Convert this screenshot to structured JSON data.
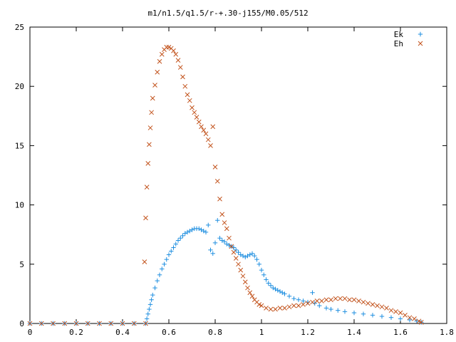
{
  "chart_data": {
    "type": "scatter",
    "title": "m1/n1.5/q1.5/r-+.30-j155/M0.05/512",
    "xlabel": "",
    "ylabel": "",
    "xlim": [
      0,
      1.8
    ],
    "ylim": [
      0,
      25
    ],
    "x_ticks": [
      "0",
      "0.2",
      "0.4",
      "0.6",
      "0.8",
      "1",
      "1.2",
      "1.4",
      "1.6",
      "1.8"
    ],
    "y_ticks": [
      "0",
      "5",
      "10",
      "15",
      "20",
      "25"
    ],
    "grid": false,
    "legend_position": "top-right",
    "series": [
      {
        "name": "Ek",
        "marker": "+",
        "color": "#1f8fe0",
        "points": [
          [
            0.0,
            0
          ],
          [
            0.05,
            0
          ],
          [
            0.1,
            0
          ],
          [
            0.15,
            0
          ],
          [
            0.2,
            0
          ],
          [
            0.25,
            0
          ],
          [
            0.3,
            0
          ],
          [
            0.35,
            0
          ],
          [
            0.4,
            0
          ],
          [
            0.45,
            0
          ],
          [
            0.5,
            0
          ],
          [
            0.505,
            0.4
          ],
          [
            0.51,
            0.8
          ],
          [
            0.515,
            1.2
          ],
          [
            0.52,
            1.6
          ],
          [
            0.525,
            2.0
          ],
          [
            0.53,
            2.4
          ],
          [
            0.54,
            3.0
          ],
          [
            0.55,
            3.6
          ],
          [
            0.56,
            4.1
          ],
          [
            0.57,
            4.6
          ],
          [
            0.58,
            5.0
          ],
          [
            0.59,
            5.4
          ],
          [
            0.6,
            5.8
          ],
          [
            0.61,
            6.1
          ],
          [
            0.62,
            6.4
          ],
          [
            0.63,
            6.7
          ],
          [
            0.64,
            7.0
          ],
          [
            0.65,
            7.2
          ],
          [
            0.66,
            7.4
          ],
          [
            0.67,
            7.6
          ],
          [
            0.68,
            7.7
          ],
          [
            0.69,
            7.8
          ],
          [
            0.7,
            7.9
          ],
          [
            0.71,
            8.0
          ],
          [
            0.72,
            8.0
          ],
          [
            0.73,
            8.0
          ],
          [
            0.74,
            7.9
          ],
          [
            0.75,
            7.8
          ],
          [
            0.76,
            7.7
          ],
          [
            0.77,
            8.3
          ],
          [
            0.78,
            6.2
          ],
          [
            0.79,
            5.9
          ],
          [
            0.8,
            6.8
          ],
          [
            0.81,
            8.7
          ],
          [
            0.82,
            7.2
          ],
          [
            0.83,
            7.0
          ],
          [
            0.84,
            6.9
          ],
          [
            0.85,
            6.7
          ],
          [
            0.86,
            6.6
          ],
          [
            0.87,
            6.5
          ],
          [
            0.88,
            6.4
          ],
          [
            0.89,
            6.2
          ],
          [
            0.9,
            6.0
          ],
          [
            0.91,
            5.8
          ],
          [
            0.92,
            5.7
          ],
          [
            0.93,
            5.6
          ],
          [
            0.94,
            5.7
          ],
          [
            0.95,
            5.8
          ],
          [
            0.96,
            5.9
          ],
          [
            0.97,
            5.7
          ],
          [
            0.98,
            5.4
          ],
          [
            0.99,
            5.0
          ],
          [
            1.0,
            4.5
          ],
          [
            1.01,
            4.1
          ],
          [
            1.02,
            3.7
          ],
          [
            1.03,
            3.4
          ],
          [
            1.04,
            3.2
          ],
          [
            1.05,
            3.0
          ],
          [
            1.06,
            2.9
          ],
          [
            1.07,
            2.8
          ],
          [
            1.08,
            2.7
          ],
          [
            1.09,
            2.6
          ],
          [
            1.1,
            2.5
          ],
          [
            1.12,
            2.3
          ],
          [
            1.14,
            2.1
          ],
          [
            1.16,
            2.0
          ],
          [
            1.18,
            1.9
          ],
          [
            1.2,
            1.8
          ],
          [
            1.22,
            2.6
          ],
          [
            1.23,
            1.7
          ],
          [
            1.25,
            1.5
          ],
          [
            1.28,
            1.3
          ],
          [
            1.3,
            1.2
          ],
          [
            1.33,
            1.1
          ],
          [
            1.36,
            1.0
          ],
          [
            1.4,
            0.9
          ],
          [
            1.44,
            0.8
          ],
          [
            1.48,
            0.7
          ],
          [
            1.52,
            0.6
          ],
          [
            1.56,
            0.5
          ],
          [
            1.6,
            0.4
          ],
          [
            1.64,
            0.3
          ],
          [
            1.67,
            0.2
          ],
          [
            1.69,
            0.1
          ]
        ]
      },
      {
        "name": "Eh",
        "marker": "x",
        "color": "#c2521b",
        "points": [
          [
            0.0,
            0
          ],
          [
            0.05,
            0
          ],
          [
            0.1,
            0
          ],
          [
            0.15,
            0
          ],
          [
            0.2,
            0
          ],
          [
            0.25,
            0
          ],
          [
            0.3,
            0
          ],
          [
            0.35,
            0
          ],
          [
            0.4,
            0
          ],
          [
            0.45,
            0
          ],
          [
            0.5,
            0
          ],
          [
            0.495,
            5.2
          ],
          [
            0.5,
            8.9
          ],
          [
            0.505,
            11.5
          ],
          [
            0.51,
            13.5
          ],
          [
            0.515,
            15.1
          ],
          [
            0.52,
            16.5
          ],
          [
            0.525,
            17.8
          ],
          [
            0.53,
            19.0
          ],
          [
            0.54,
            20.1
          ],
          [
            0.55,
            21.2
          ],
          [
            0.56,
            22.1
          ],
          [
            0.57,
            22.7
          ],
          [
            0.58,
            23.1
          ],
          [
            0.59,
            23.3
          ],
          [
            0.6,
            23.3
          ],
          [
            0.61,
            23.2
          ],
          [
            0.62,
            23.0
          ],
          [
            0.63,
            22.7
          ],
          [
            0.64,
            22.2
          ],
          [
            0.65,
            21.6
          ],
          [
            0.66,
            20.8
          ],
          [
            0.67,
            20.0
          ],
          [
            0.68,
            19.3
          ],
          [
            0.69,
            18.8
          ],
          [
            0.7,
            18.2
          ],
          [
            0.71,
            17.8
          ],
          [
            0.72,
            17.4
          ],
          [
            0.73,
            17.0
          ],
          [
            0.74,
            16.6
          ],
          [
            0.75,
            16.3
          ],
          [
            0.76,
            16.0
          ],
          [
            0.77,
            15.5
          ],
          [
            0.78,
            15.0
          ],
          [
            0.79,
            16.6
          ],
          [
            0.8,
            13.2
          ],
          [
            0.81,
            12.0
          ],
          [
            0.82,
            10.5
          ],
          [
            0.83,
            9.2
          ],
          [
            0.84,
            8.5
          ],
          [
            0.85,
            8.0
          ],
          [
            0.86,
            7.2
          ],
          [
            0.87,
            6.5
          ],
          [
            0.88,
            6.0
          ],
          [
            0.89,
            5.5
          ],
          [
            0.9,
            5.0
          ],
          [
            0.91,
            4.5
          ],
          [
            0.92,
            4.0
          ],
          [
            0.93,
            3.5
          ],
          [
            0.94,
            3.0
          ],
          [
            0.95,
            2.6
          ],
          [
            0.96,
            2.3
          ],
          [
            0.97,
            2.0
          ],
          [
            0.98,
            1.8
          ],
          [
            0.99,
            1.6
          ],
          [
            1.0,
            1.5
          ],
          [
            1.02,
            1.3
          ],
          [
            1.04,
            1.2
          ],
          [
            1.06,
            1.2
          ],
          [
            1.08,
            1.3
          ],
          [
            1.1,
            1.3
          ],
          [
            1.12,
            1.4
          ],
          [
            1.14,
            1.5
          ],
          [
            1.16,
            1.5
          ],
          [
            1.18,
            1.6
          ],
          [
            1.2,
            1.7
          ],
          [
            1.22,
            1.8
          ],
          [
            1.24,
            1.9
          ],
          [
            1.26,
            1.9
          ],
          [
            1.28,
            2.0
          ],
          [
            1.3,
            2.0
          ],
          [
            1.32,
            2.1
          ],
          [
            1.34,
            2.1
          ],
          [
            1.36,
            2.1
          ],
          [
            1.38,
            2.0
          ],
          [
            1.4,
            2.0
          ],
          [
            1.42,
            1.9
          ],
          [
            1.44,
            1.8
          ],
          [
            1.46,
            1.7
          ],
          [
            1.48,
            1.6
          ],
          [
            1.5,
            1.5
          ],
          [
            1.52,
            1.4
          ],
          [
            1.54,
            1.3
          ],
          [
            1.56,
            1.1
          ],
          [
            1.58,
            1.0
          ],
          [
            1.6,
            0.9
          ],
          [
            1.62,
            0.7
          ],
          [
            1.64,
            0.5
          ],
          [
            1.66,
            0.4
          ],
          [
            1.68,
            0.2
          ],
          [
            1.69,
            0.1
          ]
        ]
      }
    ]
  }
}
